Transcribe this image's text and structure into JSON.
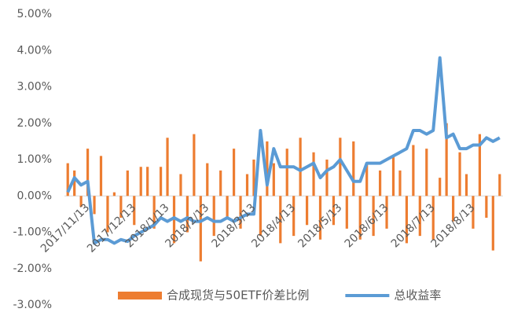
{
  "chart_data": {
    "type": "bar-line",
    "categories": [
      null,
      null,
      null,
      "2017/11/13",
      null,
      null,
      null,
      null,
      null,
      null,
      "2017/12/13",
      null,
      null,
      null,
      null,
      "2018/1/13",
      null,
      null,
      null,
      null,
      null,
      "2018/2/13",
      null,
      null,
      null,
      null,
      null,
      null,
      "2018/3/13",
      null,
      null,
      null,
      null,
      null,
      "2018/4/13",
      null,
      null,
      null,
      null,
      null,
      null,
      "2018/5/13",
      null,
      null,
      null,
      null,
      null,
      null,
      "2018/6/13",
      null,
      null,
      null,
      null,
      null,
      null,
      "2018/7/13",
      null,
      null,
      null,
      null,
      null,
      "2018/8/13",
      null,
      null,
      null,
      null
    ],
    "series": [
      {
        "name": "合成现货与50ETF价差比例",
        "color": "#ed7d31",
        "kind": "bar",
        "values": [
          0.9,
          0.7,
          -0.3,
          1.3,
          -0.5,
          1.1,
          -1.0,
          0.1,
          -0.6,
          0.7,
          -0.8,
          0.8,
          0.8,
          -0.9,
          0.8,
          1.6,
          -1.3,
          0.6,
          -1.0,
          1.7,
          -1.8,
          0.9,
          -1.1,
          0.7,
          -0.6,
          1.3,
          -0.9,
          0.6,
          1.0,
          -1.1,
          1.5,
          0.9,
          -1.3,
          1.3,
          -1.1,
          1.6,
          -0.8,
          1.2,
          -1.2,
          1.0,
          -0.8,
          1.6,
          -0.9,
          1.5,
          -1.2,
          0.9,
          -1.1,
          0.7,
          -0.9,
          1.1,
          0.7,
          -1.3,
          1.4,
          -1.1,
          1.3,
          -1.2,
          0.5,
          2.0,
          -0.7,
          1.2,
          0.6,
          -0.9,
          1.7,
          -0.6,
          -1.5,
          0.6
        ]
      },
      {
        "name": "总收益率",
        "color": "#5b9bd5",
        "kind": "line",
        "values": [
          0.1,
          0.5,
          0.3,
          0.4,
          -1.3,
          -1.2,
          -1.2,
          -1.3,
          -1.2,
          -1.25,
          -1.1,
          -1.0,
          -0.9,
          -0.8,
          -0.6,
          -0.7,
          -0.6,
          -0.7,
          -0.6,
          -0.7,
          -0.7,
          -0.6,
          -0.7,
          -0.7,
          -0.6,
          -0.7,
          -0.6,
          -0.5,
          -0.5,
          1.8,
          0.3,
          1.3,
          0.8,
          0.8,
          0.8,
          0.7,
          0.8,
          0.9,
          0.5,
          0.7,
          0.8,
          1.0,
          0.7,
          0.4,
          0.4,
          0.9,
          0.9,
          0.9,
          1.0,
          1.1,
          1.2,
          1.3,
          1.8,
          1.8,
          1.7,
          1.8,
          3.8,
          1.6,
          1.7,
          1.3,
          1.3,
          1.4,
          1.4,
          1.6,
          1.5,
          1.6
        ]
      }
    ],
    "ylim": [
      -3,
      5
    ],
    "yticks": [
      {
        "value": -3,
        "label": "-3.00%"
      },
      {
        "value": -2,
        "label": "-2.00%"
      },
      {
        "value": -1,
        "label": "-1.00%"
      },
      {
        "value": 0,
        "label": "0.00%"
      },
      {
        "value": 1,
        "label": "1.00%"
      },
      {
        "value": 2,
        "label": "2.00%"
      },
      {
        "value": 3,
        "label": "3.00%"
      },
      {
        "value": 4,
        "label": "4.00%"
      },
      {
        "value": 5,
        "label": "5.00%"
      }
    ],
    "grid": false,
    "legend": "bottom"
  }
}
